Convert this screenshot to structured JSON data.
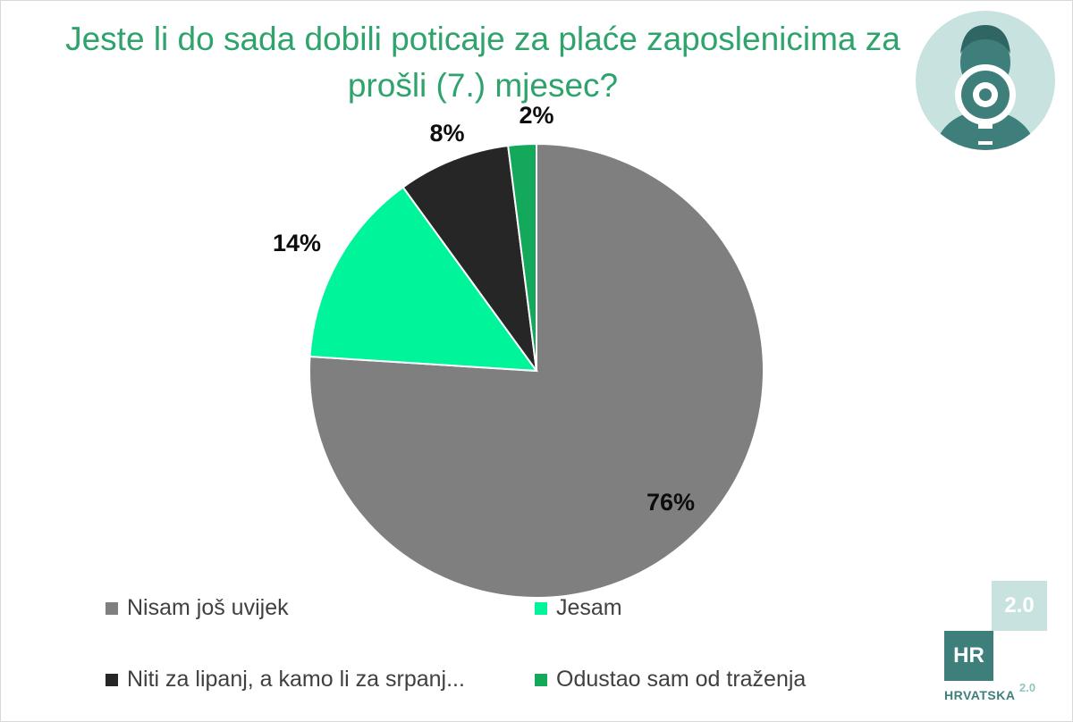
{
  "title_lines": [
    "Jeste li do sada dobili poticaje za plaće zaposlenicima za",
    "prošli (7.) mjesec?"
  ],
  "chart_data": {
    "type": "pie",
    "categories": [
      "Nisam još uvijek",
      "Jesam",
      "Niti za lipanj, a kamo li za srpanj...",
      "Odustao sam od traženja"
    ],
    "values": [
      76,
      14,
      8,
      2
    ],
    "labels": [
      "76%",
      "14%",
      "8%",
      "2%"
    ],
    "colors": [
      "#7f7f7f",
      "#00f59a",
      "#262626",
      "#13a85a"
    ],
    "title": "Jeste li do sada dobili poticaje za plaće zaposlenicima za prošli (7.) mjesec?",
    "legend_position": "bottom"
  },
  "logo": {
    "top": "2.0",
    "hr": "HR",
    "brand": "HRVATSKA",
    "version": "2.0"
  },
  "colors": {
    "title": "#2ea36b",
    "avatar_bg": "#c7e2df",
    "avatar_figure": "#3e7f7c"
  }
}
